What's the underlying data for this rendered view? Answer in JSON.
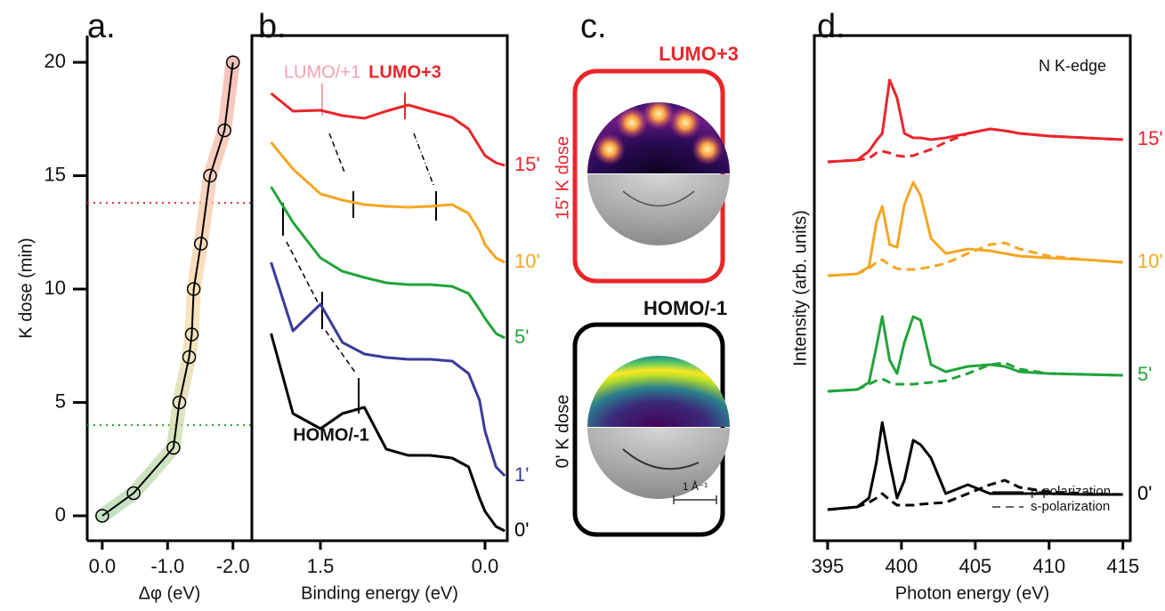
{
  "chart_data": [
    {
      "type": "line",
      "title": "a.",
      "xlabel": "Δφ (eV)",
      "ylabel": "K dose (min)",
      "x": [
        0.0,
        -0.48,
        -1.09,
        -1.18,
        -1.33,
        -1.37,
        -1.4,
        -1.51,
        -1.65,
        -1.87,
        -2.0
      ],
      "series": [
        {
          "color": "#000000",
          "values": [
            0,
            1,
            3,
            5,
            7,
            8,
            10,
            12,
            15,
            17,
            20
          ]
        }
      ],
      "markers": "circle",
      "xlim": [
        0.23,
        -2.29
      ],
      "ylim": [
        -1.1,
        21.18
      ],
      "xticks": [
        {
          "value": 0,
          "label": "0.0"
        },
        {
          "value": -1,
          "label": "-1.0"
        },
        {
          "value": -2,
          "label": "-2.0"
        }
      ],
      "yticks": [
        0,
        5,
        10,
        15,
        20
      ],
      "reference_lines": [
        {
          "value": 13.8,
          "color": "#e8262b"
        },
        {
          "value": 4,
          "color": "#22a33a"
        }
      ]
    },
    {
      "type": "line",
      "title": "b.",
      "xlabel": "Binding energy (eV)",
      "x": [
        1.95,
        1.75,
        1.5,
        1.3,
        1.1,
        0.9,
        0.7,
        0.5,
        0.3,
        0.15,
        0.05,
        0.0,
        -0.1,
        -0.18
      ],
      "series": [
        {
          "name": "15'",
          "color": "#e8262b",
          "values": [
            503,
            483,
            484,
            478,
            475,
            483,
            490,
            483,
            476,
            463,
            443,
            433,
            425,
            422
          ]
        },
        {
          "name": "10'",
          "color": "#f5a623",
          "values": [
            448,
            418,
            390,
            383,
            378,
            376,
            375,
            376,
            378,
            368,
            348,
            333,
            318,
            313
          ]
        },
        {
          "name": "5'",
          "color": "#22a33a",
          "values": [
            398,
            358,
            318,
            303,
            296,
            290,
            288,
            288,
            286,
            278,
            260,
            250,
            233,
            228
          ]
        },
        {
          "name": "1'",
          "color": "#3a3a9a",
          "values": [
            313,
            236,
            266,
            223,
            210,
            206,
            204,
            204,
            202,
            188,
            158,
            123,
            83,
            73
          ]
        },
        {
          "name": "0'",
          "color": "#000000",
          "values": [
            233,
            143,
            126,
            143,
            150,
            103,
            96,
            96,
            93,
            83,
            48,
            33,
            16,
            11
          ]
        }
      ],
      "xlim": [
        2.125,
        -0.203
      ],
      "ylim": [
        0,
        568
      ],
      "xticks": [
        1.5,
        {
          "value": 0,
          "label": "0.0"
        }
      ],
      "annotations": [
        {
          "text": "LUMO/+1",
          "color": "#f4a0b0"
        },
        {
          "text": "LUMO+3",
          "color": "#e8262b"
        },
        {
          "text": "HOMO/-1",
          "color": "#111111"
        }
      ]
    },
    {
      "type": "image",
      "title": "c.",
      "panels": [
        {
          "label": "LUMO+3",
          "dose": "15' K dose",
          "color": "#e8262b"
        },
        {
          "label": "HOMO/-1",
          "dose": "0' K dose",
          "color": "#000000",
          "scale": "1 Å⁻¹"
        }
      ]
    },
    {
      "type": "line",
      "title": "d.",
      "xlabel": "Photon energy (eV)",
      "ylabel": "Intensity (arb. units)",
      "annotation": "N K-edge",
      "legend": [
        "p-polarization",
        "s-polarization"
      ],
      "x": [
        395,
        397,
        397.8,
        398.3,
        398.7,
        399.2,
        399.7,
        400.2,
        400.8,
        401.3,
        402,
        403,
        404.5,
        406,
        407,
        408,
        410,
        412.5,
        415
      ],
      "series": [
        {
          "name": "15'",
          "color": "#e8262b",
          "p_values": [
            426,
            428,
            438,
            450,
            458,
            518,
            498,
            458,
            453,
            453,
            451,
            453,
            458,
            463,
            461,
            458,
            455,
            453,
            451
          ],
          "s_values": [
            426,
            428,
            430,
            436,
            438,
            436,
            433,
            432,
            433,
            436,
            440,
            448,
            458,
            463,
            461,
            458,
            455,
            453,
            451
          ]
        },
        {
          "name": "10'",
          "color": "#f5a623",
          "p_values": [
            298,
            300,
            308,
            358,
            376,
            333,
            330,
            378,
            403,
            388,
            340,
            323,
            328,
            326,
            323,
            320,
            318,
            316,
            313
          ],
          "s_values": [
            298,
            300,
            306,
            313,
            316,
            310,
            306,
            305,
            305,
            306,
            308,
            312,
            323,
            333,
            335,
            328,
            320,
            316,
            313
          ]
        },
        {
          "name": "5'",
          "color": "#22a33a",
          "p_values": [
            168,
            170,
            178,
            218,
            252,
            203,
            188,
            223,
            252,
            248,
            198,
            190,
            196,
            198,
            196,
            190,
            188,
            187,
            186
          ],
          "s_values": [
            168,
            170,
            176,
            180,
            182,
            178,
            176,
            176,
            176,
            177,
            178,
            180,
            188,
            198,
            200,
            193,
            188,
            187,
            186
          ]
        },
        {
          "name": "0'",
          "color": "#000000",
          "p_values": [
            35,
            38,
            48,
            88,
            133,
            88,
            48,
            68,
            113,
            108,
            93,
            53,
            63,
            53,
            53,
            53,
            53,
            52,
            52
          ],
          "s_values": [
            35,
            38,
            43,
            48,
            53,
            46,
            40,
            40,
            40,
            41,
            42,
            43,
            53,
            63,
            68,
            60,
            55,
            53,
            52
          ]
        }
      ],
      "xlim": [
        394.1,
        415.5
      ],
      "ylim": [
        0,
        568
      ],
      "xticks": [
        395,
        400,
        405,
        410,
        415
      ]
    }
  ]
}
